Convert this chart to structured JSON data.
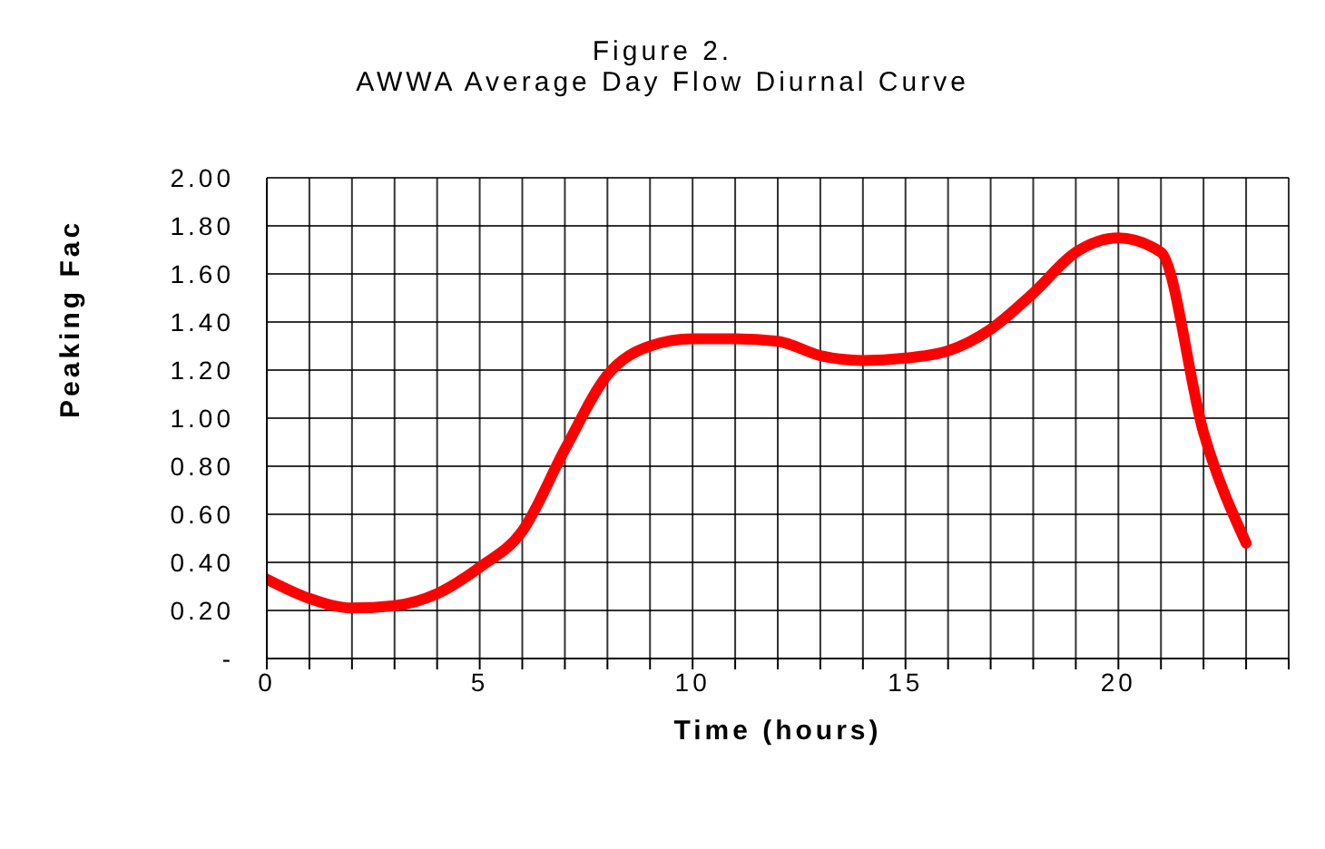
{
  "chart_data": {
    "type": "line",
    "title": "Figure 2.",
    "subtitle": "AWWA Average Day Flow Diurnal Curve",
    "xlabel": "Time (hours)",
    "ylabel": "Peaking Fac",
    "x": [
      0,
      1,
      2,
      3,
      4,
      5,
      6,
      7,
      8,
      9,
      10,
      11,
      12,
      13,
      14,
      15,
      16,
      17,
      18,
      19,
      20,
      21,
      22,
      23
    ],
    "series": [
      {
        "color": "#ff0000",
        "values": [
          0.33,
          0.25,
          0.21,
          0.22,
          0.27,
          0.38,
          0.53,
          0.87,
          1.18,
          1.3,
          1.33,
          1.33,
          1.32,
          1.26,
          1.24,
          1.25,
          1.28,
          1.37,
          1.52,
          1.69,
          1.75,
          1.69,
          0.94,
          0.48
        ]
      }
    ],
    "xlim": [
      0,
      24
    ],
    "xticks": [
      0,
      {
        "value": 1,
        "label": null
      },
      {
        "value": 2,
        "label": null
      },
      {
        "value": 3,
        "label": null
      },
      {
        "value": 4,
        "label": null
      },
      5,
      {
        "value": 6,
        "label": null
      },
      {
        "value": 7,
        "label": null
      },
      {
        "value": 8,
        "label": null
      },
      {
        "value": 9,
        "label": null
      },
      10,
      {
        "value": 11,
        "label": null
      },
      {
        "value": 12,
        "label": null
      },
      {
        "value": 13,
        "label": null
      },
      {
        "value": 14,
        "label": null
      },
      15,
      {
        "value": 16,
        "label": null
      },
      {
        "value": 17,
        "label": null
      },
      {
        "value": 18,
        "label": null
      },
      {
        "value": 19,
        "label": null
      },
      20,
      {
        "value": 21,
        "label": null
      },
      {
        "value": 22,
        "label": null
      },
      {
        "value": 23,
        "label": null
      },
      {
        "value": 24,
        "label": null
      }
    ],
    "ylim": [
      0,
      2
    ],
    "yticks": [
      {
        "value": 0,
        "label": "-"
      },
      {
        "value": 0.2,
        "label": "0.20"
      },
      {
        "value": 0.4,
        "label": "0.40"
      },
      {
        "value": 0.6,
        "label": "0.60"
      },
      {
        "value": 0.8,
        "label": "0.80"
      },
      {
        "value": 1,
        "label": "1.00"
      },
      {
        "value": 1.2,
        "label": "1.20"
      },
      {
        "value": 1.4,
        "label": "1.40"
      },
      {
        "value": 1.6,
        "label": "1.60"
      },
      {
        "value": 1.8,
        "label": "1.80"
      },
      {
        "value": 2,
        "label": "2.00"
      }
    ],
    "grid": true,
    "marker": "none",
    "line_style": "solid"
  }
}
